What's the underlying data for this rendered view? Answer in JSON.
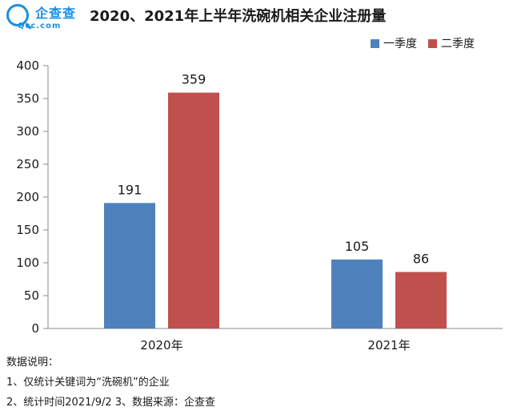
{
  "brand": {
    "name_cn": "企查查",
    "name_en": "Qcc.com",
    "color": "#1a8fe3"
  },
  "chart_data": {
    "type": "bar",
    "title": "2020、2021年上半年洗碗机相关企业注册量",
    "categories": [
      "2020年",
      "2021年"
    ],
    "series": [
      {
        "name": "一季度",
        "color": "#4f81bd",
        "values": [
          191,
          105
        ]
      },
      {
        "name": "二季度",
        "color": "#c0504d",
        "values": [
          359,
          86
        ]
      }
    ],
    "ylim": [
      0,
      400
    ],
    "yticks": [
      0,
      50,
      100,
      150,
      200,
      250,
      300,
      350,
      400
    ],
    "xlabel": "",
    "ylabel": "",
    "grid": false,
    "legend_position": "top-right",
    "data_labels": true
  },
  "notes": {
    "heading": "数据说明：",
    "line1": "1、仅统计关键词为“洗碗机”的企业",
    "line2": "2、统计时间2021/9/2   3、数据来源：企查查"
  }
}
